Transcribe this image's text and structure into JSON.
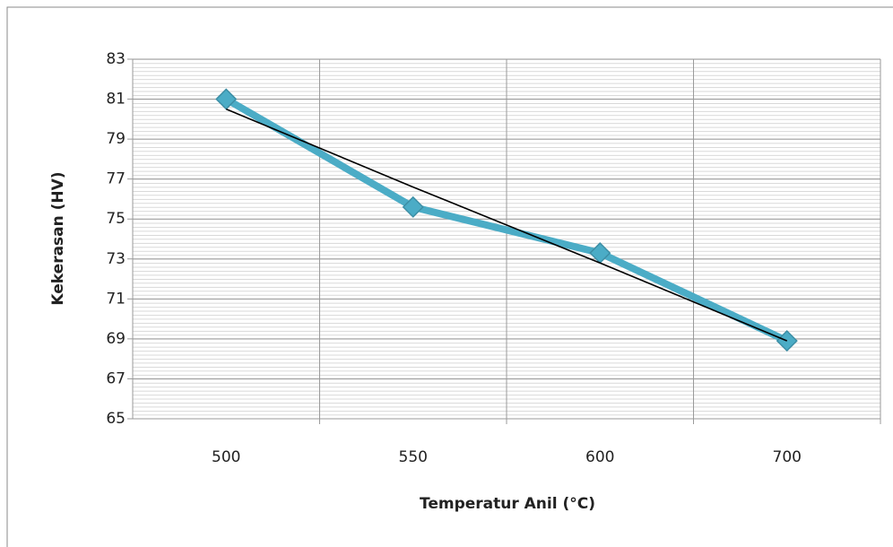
{
  "chart_data": {
    "type": "line",
    "x_label": "Temperatur Anil (°C)",
    "y_label": "Kekerasan (HV)",
    "categories": [
      "500",
      "550",
      "600",
      "700"
    ],
    "series": [
      {
        "color": "#4bacc6",
        "values": [
          81.0,
          75.6,
          73.3,
          68.9
        ]
      }
    ],
    "trendline": {
      "color": "#000000",
      "values": [
        80.5,
        76.6,
        72.8,
        68.9
      ]
    },
    "ylim": [
      65,
      83
    ],
    "yticks": [
      65,
      67,
      69,
      71,
      73,
      75,
      77,
      79,
      81,
      83
    ],
    "grid": true
  }
}
